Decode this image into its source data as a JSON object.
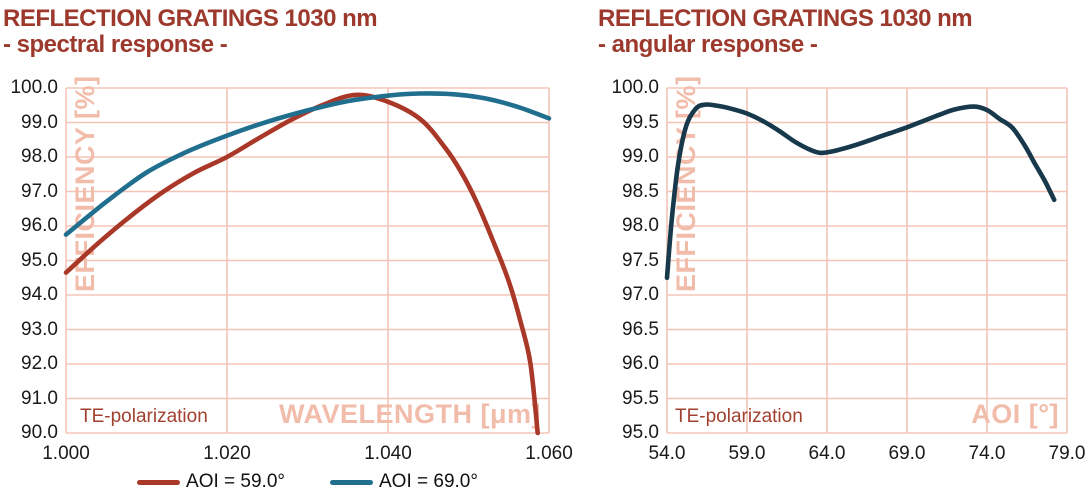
{
  "colors": {
    "background": "#ffffff",
    "title": "#9c392c",
    "annotation": "#a2402f",
    "grid": "#f3c5b7",
    "watermark": "#f2bcab",
    "tick_text": "#1a1a1a",
    "series_red": "#a93828",
    "series_teal": "#216f8f",
    "series_navy": "#17394b"
  },
  "legend": {
    "position": "below-left-chart",
    "items": [
      {
        "label": "AOI = 59.0°",
        "color": "#a93828"
      },
      {
        "label": "AOI = 69.0°",
        "color": "#216f8f"
      }
    ]
  },
  "chart_data": [
    {
      "id": "spectral",
      "type": "line",
      "title": "REFLECTION GRATINGS 1030 nm",
      "subtitle": "- spectral response -",
      "xlabel": "WAVELENGTH [μm]",
      "ylabel": "EFFICIENCY [%]",
      "annotation": "TE-polarization",
      "grid": true,
      "xlim": [
        1.0,
        1.06
      ],
      "ylim": [
        90.0,
        100.0
      ],
      "xticks": [
        1.0,
        1.02,
        1.04,
        1.06
      ],
      "xtick_labels": [
        "1.000",
        "1.020",
        "1.040",
        "1.060"
      ],
      "yticks": [
        100.0,
        99.0,
        98.0,
        97.0,
        96.0,
        95.0,
        94.0,
        93.0,
        92.0,
        91.0,
        90.0
      ],
      "ytick_labels": [
        "100.0",
        "99.0",
        "98.0",
        "97.0",
        "96.0",
        "95.0",
        "94.0",
        "93.0",
        "92.0",
        "91.0",
        "90.0"
      ],
      "series": [
        {
          "name": "AOI = 59.0°",
          "color": "#a93828",
          "x": [
            1.0,
            1.004,
            1.008,
            1.012,
            1.016,
            1.02,
            1.024,
            1.028,
            1.032,
            1.036,
            1.04,
            1.044,
            1.047,
            1.049,
            1.051,
            1.053,
            1.055,
            1.0565,
            1.0577,
            1.0586
          ],
          "y": [
            94.65,
            95.5,
            96.28,
            96.98,
            97.55,
            98.0,
            98.55,
            99.08,
            99.52,
            99.8,
            99.6,
            99.1,
            98.3,
            97.6,
            96.7,
            95.6,
            94.4,
            93.2,
            92.0,
            90.0
          ]
        },
        {
          "name": "AOI = 69.0°",
          "color": "#216f8f",
          "x": [
            1.0,
            1.005,
            1.01,
            1.015,
            1.02,
            1.025,
            1.03,
            1.035,
            1.04,
            1.044,
            1.048,
            1.052,
            1.056,
            1.06
          ],
          "y": [
            95.75,
            96.7,
            97.55,
            98.15,
            98.62,
            99.02,
            99.35,
            99.62,
            99.78,
            99.84,
            99.82,
            99.7,
            99.46,
            99.12
          ]
        }
      ]
    },
    {
      "id": "angular",
      "type": "line",
      "title": "REFLECTION GRATINGS 1030 nm",
      "subtitle": "- angular response -",
      "xlabel": "AOI [°]",
      "ylabel": "EFFICIENCY [%]",
      "annotation": "TE-polarization",
      "grid": true,
      "xlim": [
        54.0,
        79.0
      ],
      "ylim": [
        95.0,
        100.0
      ],
      "xticks": [
        54.0,
        59.0,
        64.0,
        69.0,
        74.0,
        79.0
      ],
      "xtick_labels": [
        "54.0",
        "59.0",
        "64.0",
        "69.0",
        "74.0",
        "79.0"
      ],
      "yticks": [
        100.0,
        99.5,
        99.0,
        98.5,
        98.0,
        97.5,
        97.0,
        96.5,
        96.0,
        95.5,
        95.0
      ],
      "ytick_labels": [
        "100.0",
        "99.5",
        "99.0",
        "98.5",
        "98.0",
        "97.5",
        "97.0",
        "96.5",
        "96.0",
        "95.5",
        "95.0"
      ],
      "series": [
        {
          "name": "TE-polarization",
          "color": "#17394b",
          "x": [
            54.0,
            54.3,
            54.7,
            55.2,
            55.8,
            56.4,
            57.2,
            58.0,
            59.0,
            60.0,
            61.0,
            62.0,
            63.0,
            63.6,
            64.3,
            65.0,
            66.0,
            67.0,
            68.0,
            69.0,
            70.0,
            71.0,
            72.0,
            73.2,
            74.0,
            74.8,
            75.6,
            76.4,
            77.0,
            77.6,
            78.2
          ],
          "y": [
            97.25,
            98.1,
            98.9,
            99.45,
            99.7,
            99.76,
            99.74,
            99.7,
            99.63,
            99.52,
            99.38,
            99.22,
            99.1,
            99.06,
            99.08,
            99.12,
            99.19,
            99.27,
            99.35,
            99.43,
            99.52,
            99.61,
            99.69,
            99.73,
            99.68,
            99.55,
            99.42,
            99.15,
            98.9,
            98.66,
            98.38
          ]
        }
      ]
    }
  ]
}
